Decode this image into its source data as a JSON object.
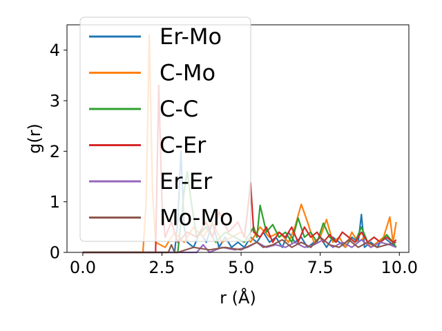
{
  "chart_data": {
    "type": "line",
    "xlabel": "r (Å)",
    "ylabel": "g(r)",
    "xlim": [
      -0.5,
      10.3
    ],
    "ylim": [
      0,
      4.5
    ],
    "xticks": [
      0.0,
      2.5,
      5.0,
      7.5,
      10.0
    ],
    "xtick_labels": [
      "0.0",
      "2.5",
      "5.0",
      "7.5",
      "10.0"
    ],
    "yticks": [
      0,
      1,
      2,
      3,
      4
    ],
    "ytick_labels": [
      "0",
      "1",
      "2",
      "3",
      "4"
    ],
    "grid": false,
    "legend_position": "upper-left",
    "series": [
      {
        "name": "Er-Mo",
        "color": "#1f77b4",
        "x": [
          0.0,
          1.0,
          2.0,
          2.9,
          3.0,
          3.1,
          3.2,
          3.3,
          3.5,
          3.7,
          3.9,
          4.1,
          4.3,
          4.5,
          4.7,
          4.9,
          5.1,
          5.3,
          5.5,
          5.7,
          5.9,
          6.1,
          6.3,
          6.5,
          6.7,
          6.9,
          7.1,
          7.3,
          7.5,
          7.7,
          7.9,
          8.1,
          8.3,
          8.5,
          8.7,
          8.8,
          8.9,
          9.1,
          9.3,
          9.5,
          9.7,
          9.9
        ],
        "y": [
          0,
          0,
          0,
          0,
          0.6,
          2.0,
          0.5,
          0.2,
          0.1,
          0.4,
          0.2,
          0.6,
          0.1,
          0.3,
          0.1,
          0.2,
          0.1,
          0.3,
          0.2,
          0.4,
          0.2,
          0.3,
          0.1,
          0.4,
          0.2,
          0.3,
          0.1,
          0.2,
          0.3,
          0.1,
          0.3,
          0.2,
          0.1,
          0.3,
          0.2,
          0.75,
          0.1,
          0.2,
          0.1,
          0.3,
          0.2,
          0.1
        ]
      },
      {
        "name": "C-Mo",
        "color": "#ff7f0e",
        "x": [
          0.0,
          1.0,
          1.9,
          2.0,
          2.1,
          2.2,
          2.3,
          2.6,
          2.9,
          3.2,
          3.5,
          3.8,
          4.1,
          4.4,
          4.7,
          5.0,
          5.3,
          5.6,
          5.9,
          6.2,
          6.5,
          6.7,
          6.9,
          7.1,
          7.3,
          7.5,
          7.7,
          7.9,
          8.1,
          8.3,
          8.5,
          8.7,
          8.9,
          9.1,
          9.3,
          9.5,
          9.7,
          9.8,
          9.9
        ],
        "y": [
          0,
          0,
          0,
          1.0,
          4.3,
          1.2,
          0.2,
          0.1,
          0.4,
          0.2,
          0.5,
          0.3,
          0.6,
          0.2,
          0.3,
          0.4,
          0.2,
          0.5,
          0.3,
          0.4,
          0.2,
          0.5,
          0.95,
          0.6,
          0.2,
          0.3,
          0.65,
          0.2,
          0.3,
          0.1,
          0.4,
          0.2,
          0.3,
          0.1,
          0.2,
          0.3,
          0.7,
          0.2,
          0.6
        ]
      },
      {
        "name": "C-C",
        "color": "#2ca02c",
        "x": [
          0.0,
          1.0,
          2.5,
          3.0,
          3.2,
          3.3,
          3.4,
          3.6,
          3.9,
          4.2,
          4.5,
          4.8,
          5.1,
          5.4,
          5.5,
          5.6,
          5.8,
          6.0,
          6.2,
          6.4,
          6.6,
          6.8,
          7.0,
          7.2,
          7.4,
          7.6,
          7.8,
          8.0,
          8.2,
          8.4,
          8.6,
          8.8,
          9.0,
          9.2,
          9.4,
          9.6,
          9.8,
          9.9
        ],
        "y": [
          0,
          0,
          0,
          0,
          1.2,
          1.6,
          1.1,
          0.3,
          0.5,
          0.2,
          0.4,
          0.3,
          0.2,
          0.5,
          0.3,
          0.93,
          0.4,
          0.55,
          0.3,
          0.4,
          0.2,
          0.68,
          0.3,
          0.4,
          0.2,
          0.58,
          0.3,
          0.2,
          0.4,
          0.3,
          0.2,
          0.5,
          0.2,
          0.3,
          0.2,
          0.35,
          0.2,
          0.1
        ]
      },
      {
        "name": "C-Er",
        "color": "#d62728",
        "x": [
          0.0,
          1.0,
          2.3,
          2.4,
          2.5,
          2.6,
          2.8,
          3.0,
          3.3,
          3.6,
          3.9,
          4.1,
          4.3,
          4.6,
          4.9,
          5.1,
          5.2,
          5.3,
          5.4,
          5.6,
          5.8,
          6.0,
          6.2,
          6.4,
          6.6,
          6.8,
          7.0,
          7.2,
          7.4,
          7.6,
          7.8,
          8.0,
          8.2,
          8.4,
          8.6,
          8.8,
          9.0,
          9.2,
          9.4,
          9.6,
          9.8,
          9.9
        ],
        "y": [
          0,
          0,
          0,
          3.3,
          1.0,
          0.3,
          0.6,
          0.2,
          0.4,
          0.3,
          0.6,
          0.3,
          0.8,
          0.4,
          0.6,
          0.3,
          0.8,
          1.38,
          0.4,
          0.3,
          0.5,
          0.2,
          0.4,
          0.3,
          0.5,
          0.2,
          0.5,
          0.3,
          0.4,
          0.2,
          0.35,
          0.2,
          0.4,
          0.3,
          0.2,
          0.4,
          0.2,
          0.3,
          0.2,
          0.3,
          0.2,
          0.25
        ]
      },
      {
        "name": "Er-Er",
        "color": "#9467bd",
        "x": [
          0.0,
          1.0,
          3.0,
          3.6,
          3.8,
          4.0,
          4.4,
          4.8,
          5.2,
          5.5,
          5.8,
          6.1,
          6.4,
          6.7,
          7.0,
          7.3,
          7.6,
          7.9,
          8.2,
          8.5,
          8.8,
          9.1,
          9.4,
          9.7,
          9.9
        ],
        "y": [
          0,
          0,
          0,
          0,
          0.15,
          0,
          0.1,
          0.05,
          0.1,
          0.2,
          0.1,
          0.15,
          0.1,
          0.2,
          0.1,
          0.15,
          0.25,
          0.1,
          0.2,
          0.1,
          0.25,
          0.1,
          0.2,
          0.15,
          0.1
        ]
      },
      {
        "name": "Mo-Mo",
        "color": "#8c564b",
        "x": [
          0.0,
          1.0,
          2.7,
          2.8,
          2.9,
          3.0,
          3.5,
          4.0,
          4.5,
          5.0,
          5.5,
          5.7,
          6.0,
          6.3,
          6.6,
          6.9,
          7.2,
          7.5,
          7.8,
          8.1,
          8.4,
          8.7,
          9.0,
          9.3,
          9.6,
          9.9
        ],
        "y": [
          0,
          0,
          0,
          0.15,
          0,
          0,
          0.1,
          0.05,
          0.1,
          0.05,
          0.2,
          0.1,
          0.15,
          0.25,
          0.1,
          0.2,
          0.1,
          0.3,
          0.15,
          0.1,
          0.25,
          0.1,
          0.2,
          0.1,
          0.15,
          0.2
        ]
      }
    ]
  }
}
